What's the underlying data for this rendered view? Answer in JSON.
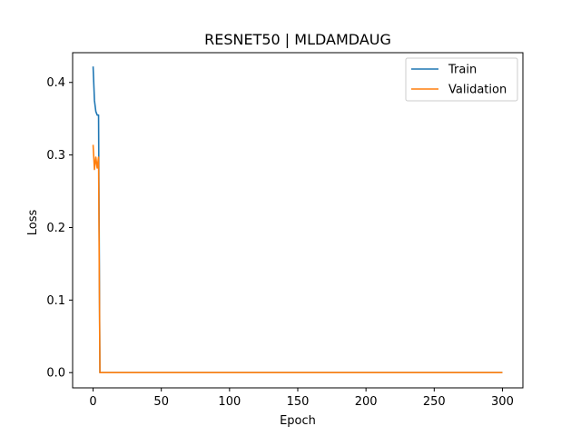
{
  "chart_data": {
    "type": "line",
    "title": "RESNET50 | MLDAMDAUG",
    "xlabel": "Epoch",
    "ylabel": "Loss",
    "xlim": [
      -15,
      315
    ],
    "ylim": [
      -0.021,
      0.441
    ],
    "xticks": [
      0,
      50,
      100,
      150,
      200,
      250,
      300
    ],
    "xtick_labels": [
      "0",
      "50",
      "100",
      "150",
      "200",
      "250",
      "300"
    ],
    "yticks": [
      0.0,
      0.1,
      0.2,
      0.3,
      0.4
    ],
    "ytick_labels": [
      "0.0",
      "0.1",
      "0.2",
      "0.3",
      "0.4"
    ],
    "grid": false,
    "legend_position": "top-right",
    "series": [
      {
        "name": "Train",
        "color": "#1f77b4",
        "x": [
          0,
          1,
          2,
          3,
          4,
          5,
          300
        ],
        "y": [
          0.422,
          0.375,
          0.36,
          0.355,
          0.355,
          0.0,
          0.0
        ]
      },
      {
        "name": "Validation",
        "color": "#ff7f0e",
        "x": [
          0,
          1,
          2,
          3,
          4,
          5,
          300
        ],
        "y": [
          0.314,
          0.28,
          0.297,
          0.282,
          0.297,
          0.0,
          0.0
        ]
      }
    ]
  }
}
